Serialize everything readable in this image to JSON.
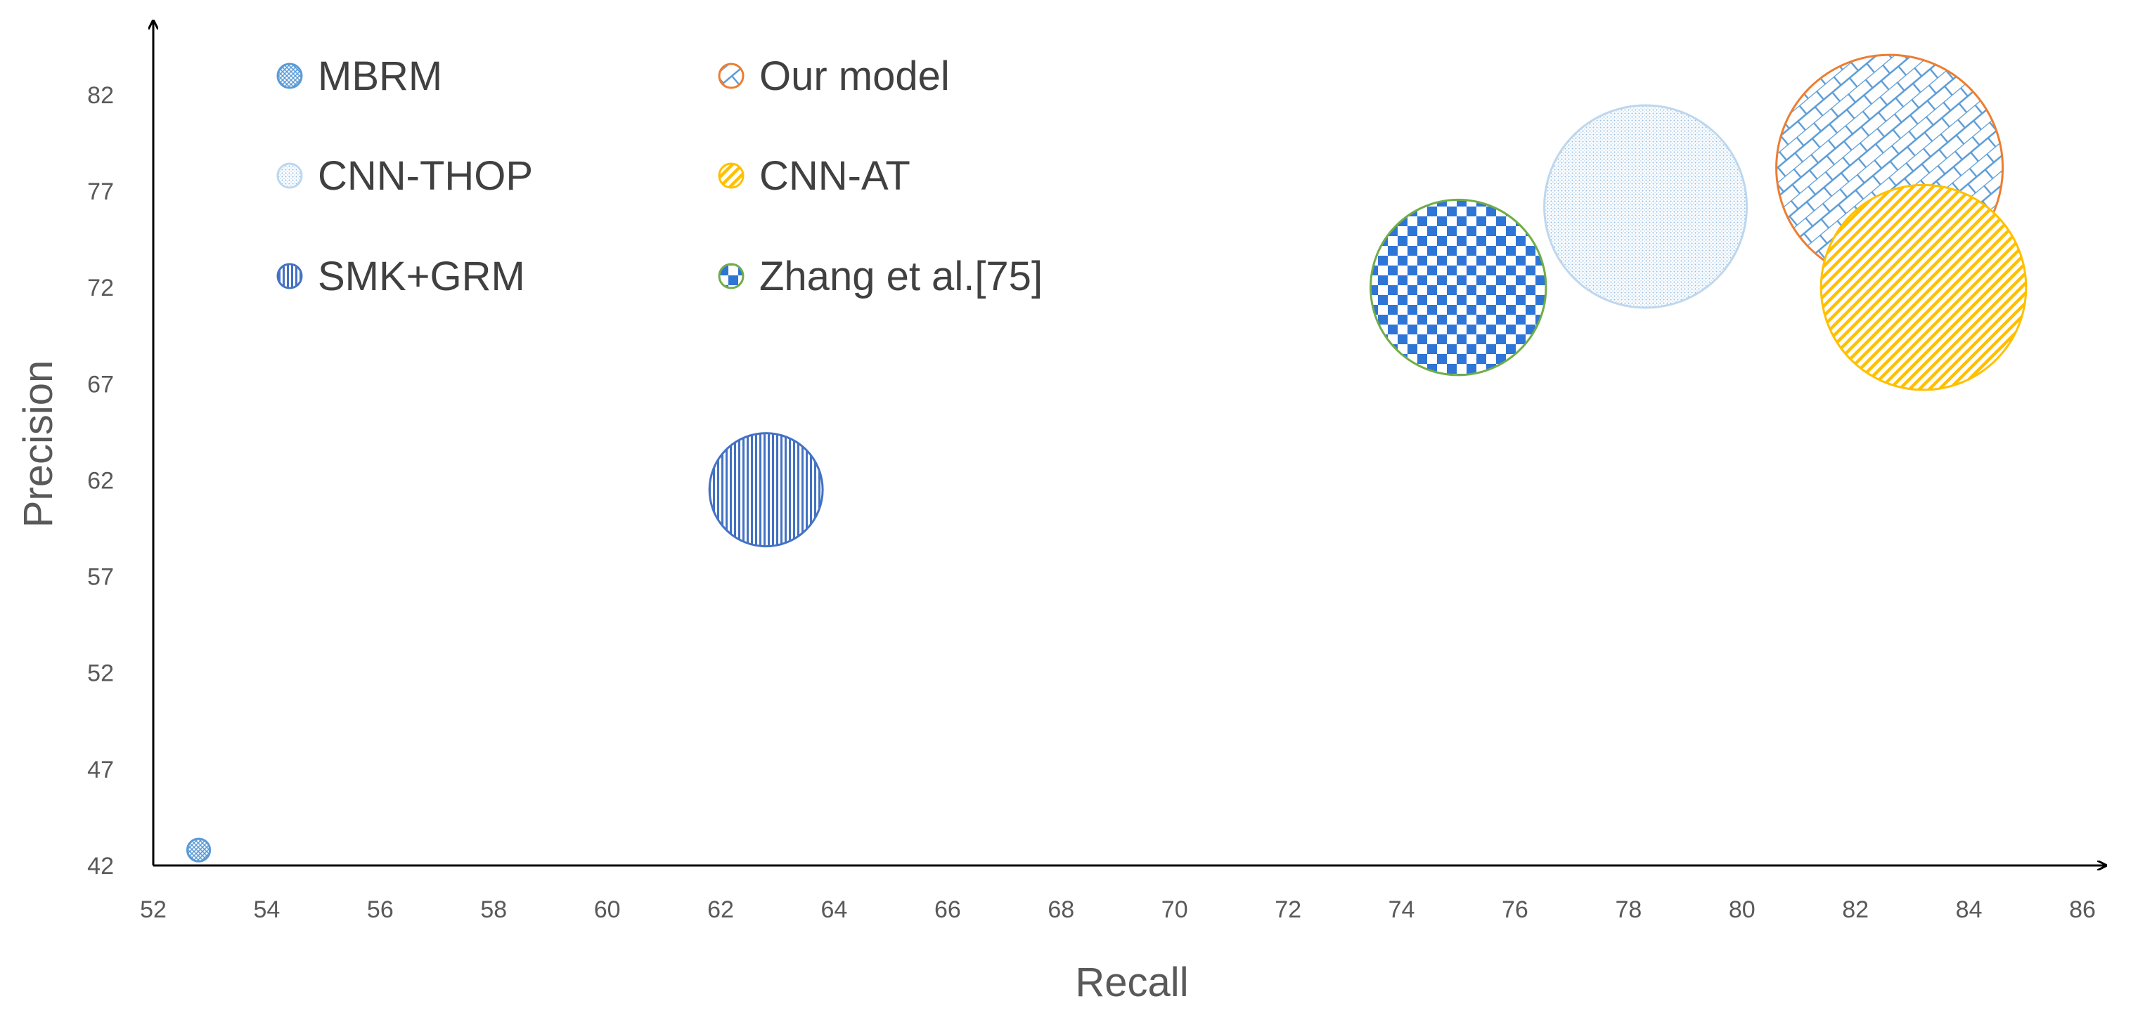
{
  "chart_data": {
    "type": "bubble",
    "xlabel": "Recall",
    "ylabel": "Precision",
    "xlim": [
      52,
      86
    ],
    "ylim": [
      42,
      84
    ],
    "x_ticks": [
      52,
      54,
      56,
      58,
      60,
      62,
      64,
      66,
      68,
      70,
      72,
      74,
      76,
      78,
      80,
      82,
      84,
      86
    ],
    "y_ticks": [
      42,
      47,
      52,
      57,
      62,
      67,
      72,
      77,
      82
    ],
    "grid": false,
    "legend_position": "top-left",
    "series": [
      {
        "name": "MBRM",
        "x": 52.8,
        "y": 42.8,
        "size": 1,
        "pattern": "cross",
        "color": "#5b9bd5",
        "fill": "#bdd7ee"
      },
      {
        "name": "Our model",
        "x": 82.6,
        "y": 78.2,
        "size": 100,
        "pattern": "brick",
        "color": "#ed7d31",
        "fill": "#5b9bd5"
      },
      {
        "name": "CNN-THOP",
        "x": 78.3,
        "y": 76.2,
        "size": 80,
        "pattern": "dots",
        "color": "#bdd7ee",
        "fill": "#5b9bd5"
      },
      {
        "name": "CNN-AT",
        "x": 83.2,
        "y": 72.0,
        "size": 82,
        "pattern": "diagonal",
        "color": "#ffc000",
        "fill": "#ffc000"
      },
      {
        "name": "SMK+GRM",
        "x": 62.8,
        "y": 61.5,
        "size": 25,
        "pattern": "vertical",
        "color": "#4472c4",
        "fill": "#4472c4"
      },
      {
        "name": "Zhang et al.[75]",
        "x": 75.0,
        "y": 72.0,
        "size": 60,
        "pattern": "checker",
        "color": "#70ad47",
        "fill": "#2e75d6"
      }
    ]
  }
}
